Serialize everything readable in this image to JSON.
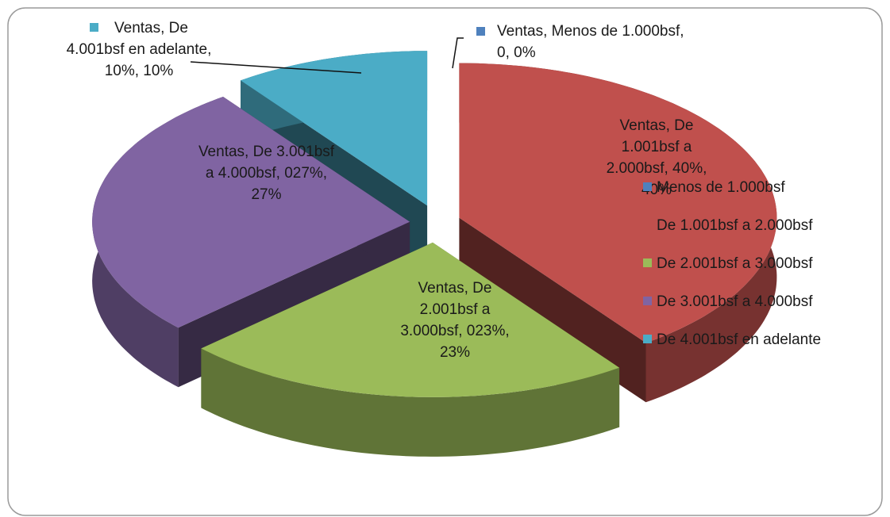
{
  "chart_data": {
    "type": "pie",
    "series_name": "Ventas",
    "categories": [
      "Menos de 1.000bsf",
      "De 1.001bsf a 2.000bsf",
      "De 2.001bsf a 3.000bsf",
      "De 3.001bsf a 4.000bsf",
      "De 4.001bsf en adelante"
    ],
    "values": [
      0,
      40,
      23,
      27,
      10
    ],
    "value_labels": [
      "Ventas, Menos de 1.000bsf, 0, 0%",
      "Ventas, De 1.001bsf a 2.000bsf, 40%, 40%",
      "Ventas, De 2.001bsf a 3.000bsf, 023%, 23%",
      "Ventas, De 3.001bsf a 4.000bsf, 027%, 27%",
      "Ventas, De 4.001bsf en adelante, 10%, 10%"
    ],
    "colors": [
      "#4f81bd",
      "#c0504d",
      "#9bbb59",
      "#8064a2",
      "#4bacc6"
    ],
    "legend": "right"
  }
}
